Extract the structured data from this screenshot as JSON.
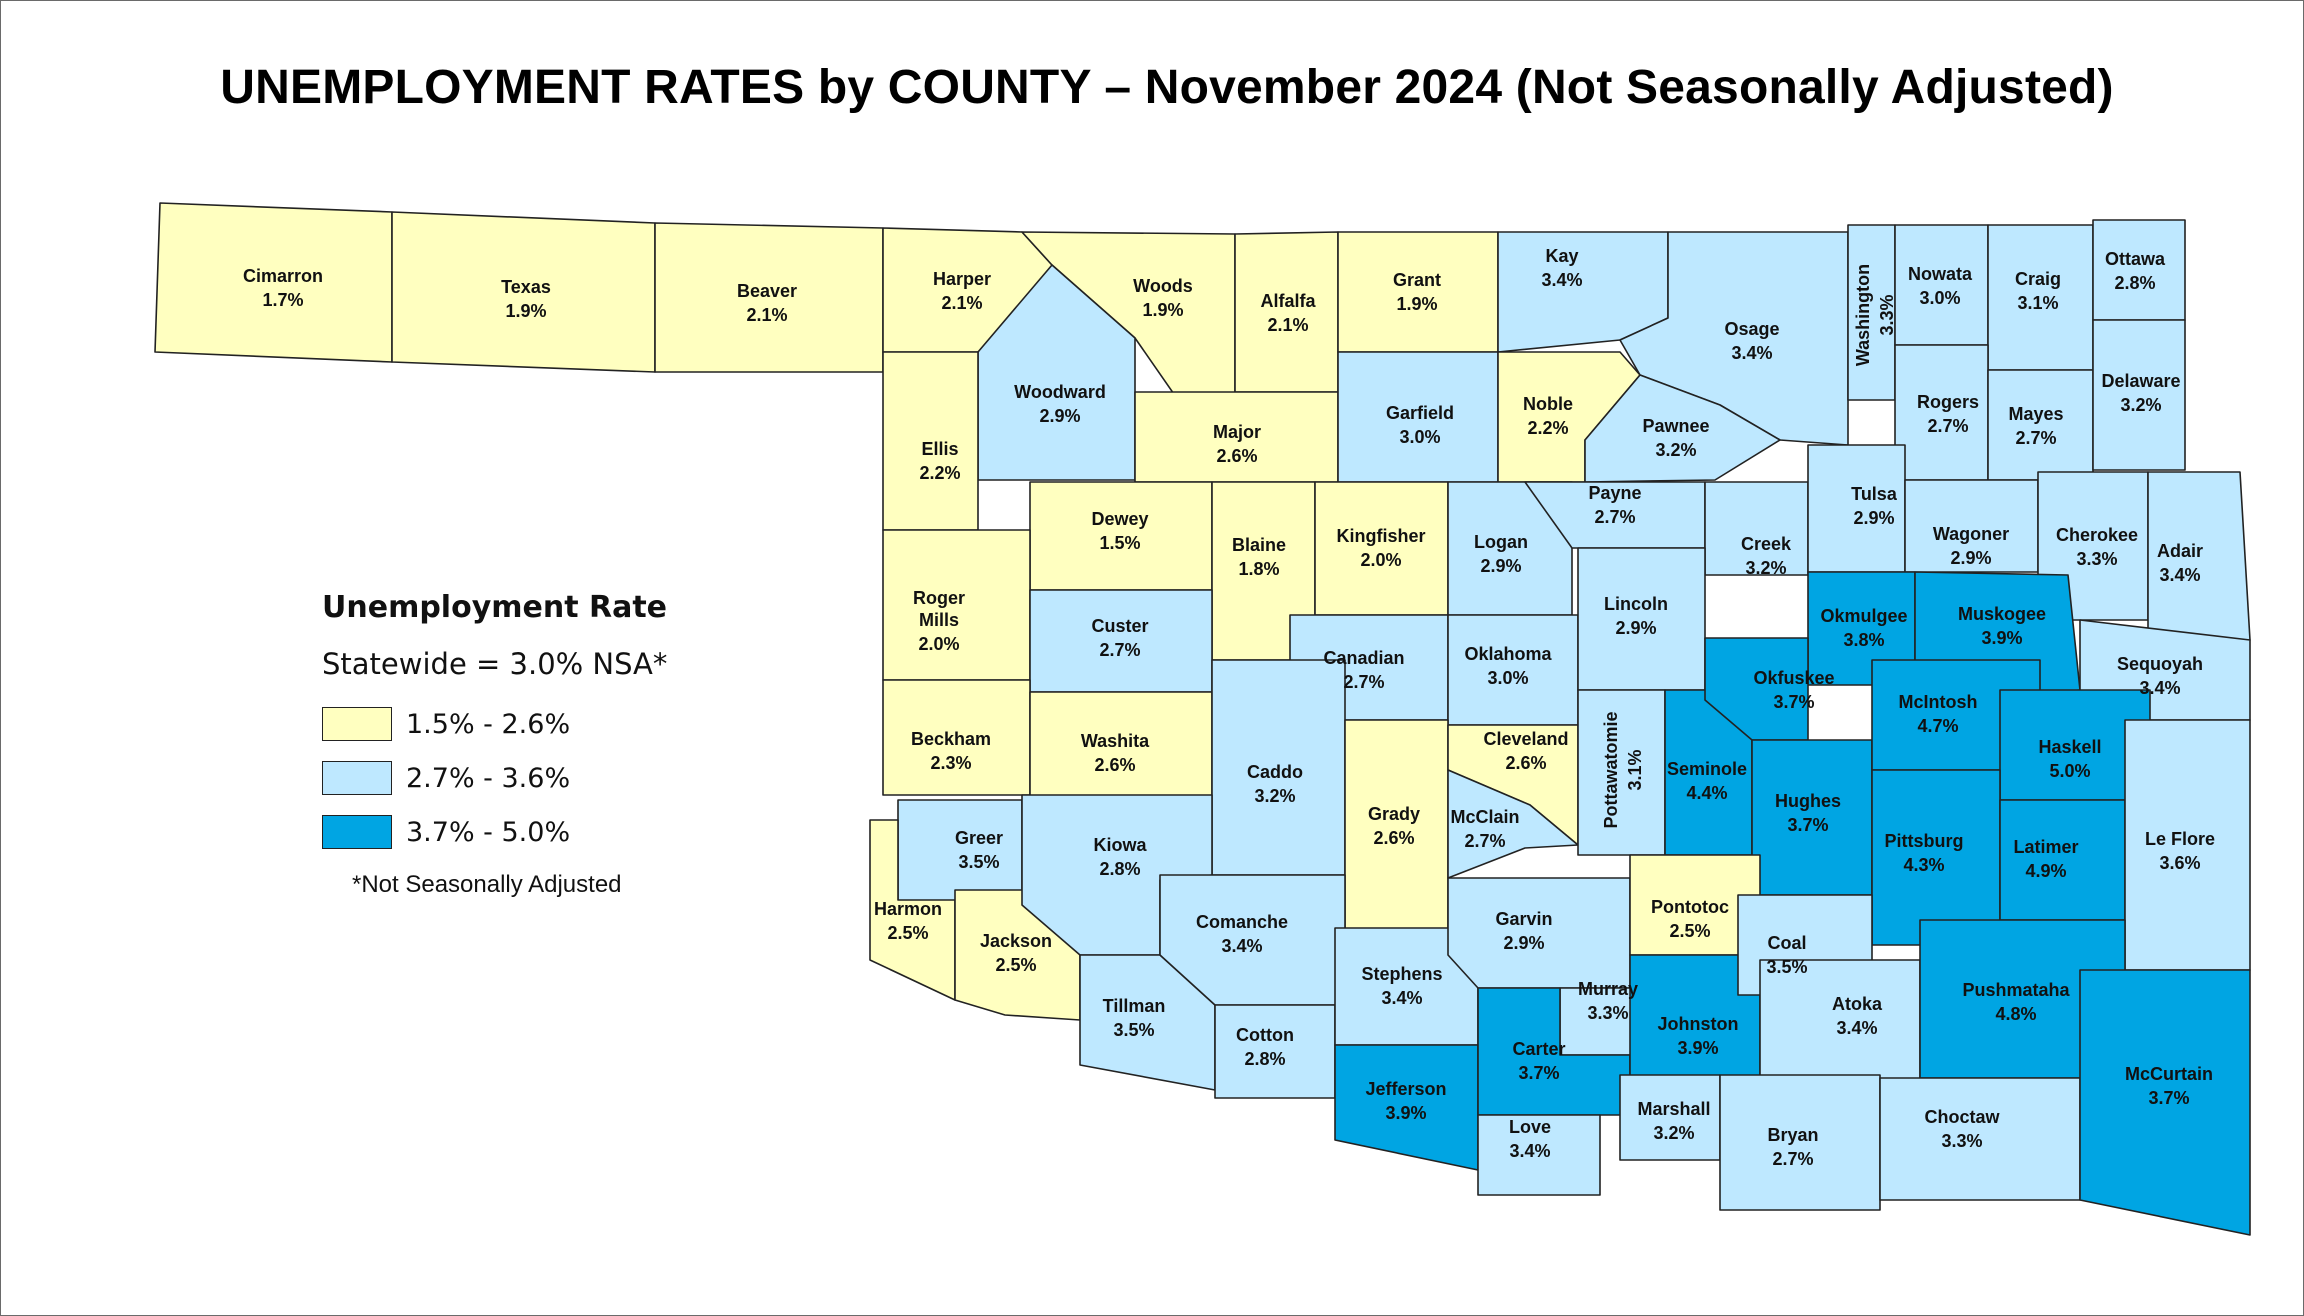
{
  "title": "UNEMPLOYMENT RATES by COUNTY – November 2024 (Not Seasonally Adjusted)",
  "legend": {
    "title": "Unemployment Rate",
    "statewide": "Statewide = 3.0% NSA*",
    "classes": [
      {
        "label": "1.5% - 2.6%",
        "color": "#FFFFC0"
      },
      {
        "label": "2.7% - 3.6%",
        "color": "#BEE8FF"
      },
      {
        "label": "3.7% - 5.0%",
        "color": "#00A5E3"
      }
    ],
    "note": "*Not Seasonally Adjusted"
  },
  "counties": [
    {
      "name": "Cimarron",
      "rate": "1.7%",
      "value": 1.7
    },
    {
      "name": "Texas",
      "rate": "1.9%",
      "value": 1.9
    },
    {
      "name": "Beaver",
      "rate": "2.1%",
      "value": 2.1
    },
    {
      "name": "Harper",
      "rate": "2.1%",
      "value": 2.1
    },
    {
      "name": "Woods",
      "rate": "1.9%",
      "value": 1.9
    },
    {
      "name": "Alfalfa",
      "rate": "2.1%",
      "value": 2.1
    },
    {
      "name": "Grant",
      "rate": "1.9%",
      "value": 1.9
    },
    {
      "name": "Kay",
      "rate": "3.4%",
      "value": 3.4
    },
    {
      "name": "Osage",
      "rate": "3.4%",
      "value": 3.4
    },
    {
      "name": "Washington",
      "rate": "3.3%",
      "value": 3.3
    },
    {
      "name": "Nowata",
      "rate": "3.0%",
      "value": 3.0
    },
    {
      "name": "Craig",
      "rate": "3.1%",
      "value": 3.1
    },
    {
      "name": "Ottawa",
      "rate": "2.8%",
      "value": 2.8
    },
    {
      "name": "Woodward",
      "rate": "2.9%",
      "value": 2.9
    },
    {
      "name": "Major",
      "rate": "2.6%",
      "value": 2.6
    },
    {
      "name": "Garfield",
      "rate": "3.0%",
      "value": 3.0
    },
    {
      "name": "Noble",
      "rate": "2.2%",
      "value": 2.2
    },
    {
      "name": "Pawnee",
      "rate": "3.2%",
      "value": 3.2
    },
    {
      "name": "Rogers",
      "rate": "2.7%",
      "value": 2.7
    },
    {
      "name": "Mayes",
      "rate": "2.7%",
      "value": 2.7
    },
    {
      "name": "Delaware",
      "rate": "3.2%",
      "value": 3.2
    },
    {
      "name": "Ellis",
      "rate": "2.2%",
      "value": 2.2
    },
    {
      "name": "Dewey",
      "rate": "1.5%",
      "value": 1.5
    },
    {
      "name": "Blaine",
      "rate": "1.8%",
      "value": 1.8
    },
    {
      "name": "Kingfisher",
      "rate": "2.0%",
      "value": 2.0
    },
    {
      "name": "Logan",
      "rate": "2.9%",
      "value": 2.9
    },
    {
      "name": "Payne",
      "rate": "2.7%",
      "value": 2.7
    },
    {
      "name": "Creek",
      "rate": "3.2%",
      "value": 3.2
    },
    {
      "name": "Tulsa",
      "rate": "2.9%",
      "value": 2.9
    },
    {
      "name": "Wagoner",
      "rate": "2.9%",
      "value": 2.9
    },
    {
      "name": "Cherokee",
      "rate": "3.3%",
      "value": 3.3
    },
    {
      "name": "Adair",
      "rate": "3.4%",
      "value": 3.4
    },
    {
      "name": "Roger Mills",
      "rate": "2.0%",
      "value": 2.0
    },
    {
      "name": "Custer",
      "rate": "2.7%",
      "value": 2.7
    },
    {
      "name": "Canadian",
      "rate": "2.7%",
      "value": 2.7
    },
    {
      "name": "Oklahoma",
      "rate": "3.0%",
      "value": 3.0
    },
    {
      "name": "Lincoln",
      "rate": "2.9%",
      "value": 2.9
    },
    {
      "name": "Okmulgee",
      "rate": "3.8%",
      "value": 3.8
    },
    {
      "name": "Muskogee",
      "rate": "3.9%",
      "value": 3.9
    },
    {
      "name": "Sequoyah",
      "rate": "3.4%",
      "value": 3.4
    },
    {
      "name": "Beckham",
      "rate": "2.3%",
      "value": 2.3
    },
    {
      "name": "Washita",
      "rate": "2.6%",
      "value": 2.6
    },
    {
      "name": "Caddo",
      "rate": "3.2%",
      "value": 3.2
    },
    {
      "name": "Grady",
      "rate": "2.6%",
      "value": 2.6
    },
    {
      "name": "Cleveland",
      "rate": "2.6%",
      "value": 2.6
    },
    {
      "name": "McClain",
      "rate": "2.7%",
      "value": 2.7
    },
    {
      "name": "Pottawatomie",
      "rate": "3.1%",
      "value": 3.1
    },
    {
      "name": "Seminole",
      "rate": "4.4%",
      "value": 4.4
    },
    {
      "name": "Okfuskee",
      "rate": "3.7%",
      "value": 3.7
    },
    {
      "name": "Hughes",
      "rate": "3.7%",
      "value": 3.7
    },
    {
      "name": "McIntosh",
      "rate": "4.7%",
      "value": 4.7
    },
    {
      "name": "Haskell",
      "rate": "5.0%",
      "value": 5.0
    },
    {
      "name": "Pittsburg",
      "rate": "4.3%",
      "value": 4.3
    },
    {
      "name": "Latimer",
      "rate": "4.9%",
      "value": 4.9
    },
    {
      "name": "Le Flore",
      "rate": "3.6%",
      "value": 3.6
    },
    {
      "name": "Greer",
      "rate": "3.5%",
      "value": 3.5
    },
    {
      "name": "Harmon",
      "rate": "2.5%",
      "value": 2.5
    },
    {
      "name": "Jackson",
      "rate": "2.5%",
      "value": 2.5
    },
    {
      "name": "Kiowa",
      "rate": "2.8%",
      "value": 2.8
    },
    {
      "name": "Tillman",
      "rate": "3.5%",
      "value": 3.5
    },
    {
      "name": "Comanche",
      "rate": "3.4%",
      "value": 3.4
    },
    {
      "name": "Cotton",
      "rate": "2.8%",
      "value": 2.8
    },
    {
      "name": "Stephens",
      "rate": "3.4%",
      "value": 3.4
    },
    {
      "name": "Jefferson",
      "rate": "3.9%",
      "value": 3.9
    },
    {
      "name": "Garvin",
      "rate": "2.9%",
      "value": 2.9
    },
    {
      "name": "Murray",
      "rate": "3.3%",
      "value": 3.3
    },
    {
      "name": "Carter",
      "rate": "3.7%",
      "value": 3.7
    },
    {
      "name": "Love",
      "rate": "3.4%",
      "value": 3.4
    },
    {
      "name": "Pontotoc",
      "rate": "2.5%",
      "value": 2.5
    },
    {
      "name": "Johnston",
      "rate": "3.9%",
      "value": 3.9
    },
    {
      "name": "Marshall",
      "rate": "3.2%",
      "value": 3.2
    },
    {
      "name": "Coal",
      "rate": "3.5%",
      "value": 3.5
    },
    {
      "name": "Atoka",
      "rate": "3.4%",
      "value": 3.4
    },
    {
      "name": "Bryan",
      "rate": "2.7%",
      "value": 2.7
    },
    {
      "name": "Pushmataha",
      "rate": "4.8%",
      "value": 4.8
    },
    {
      "name": "Choctaw",
      "rate": "3.3%",
      "value": 3.3
    },
    {
      "name": "McCurtain",
      "rate": "3.7%",
      "value": 3.7
    }
  ]
}
